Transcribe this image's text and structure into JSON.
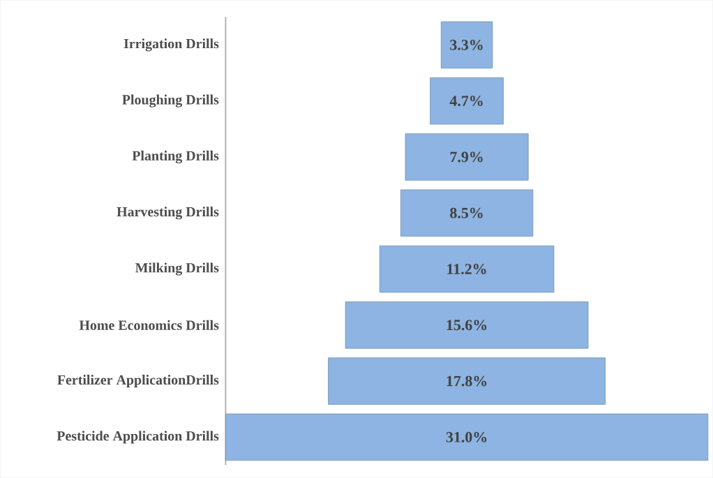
{
  "chart_data": {
    "type": "other",
    "color": "#8db4e2",
    "categories": [
      "Irrigation Drills",
      "Ploughing Drills",
      "Planting Drills",
      "Harvesting Drills",
      "Milking Drills",
      "Home Economics Drills",
      "Fertilizer ApplicationDrills",
      "Pesticide Application Drills"
    ],
    "values": [
      3.3,
      4.7,
      7.9,
      8.5,
      11.2,
      15.6,
      17.8,
      31.0
    ],
    "value_labels": [
      "3.3%",
      "4.7%",
      "7.9%",
      "8.5%",
      "11.2%",
      "15.6%",
      "17.8%",
      "31.0%"
    ]
  }
}
